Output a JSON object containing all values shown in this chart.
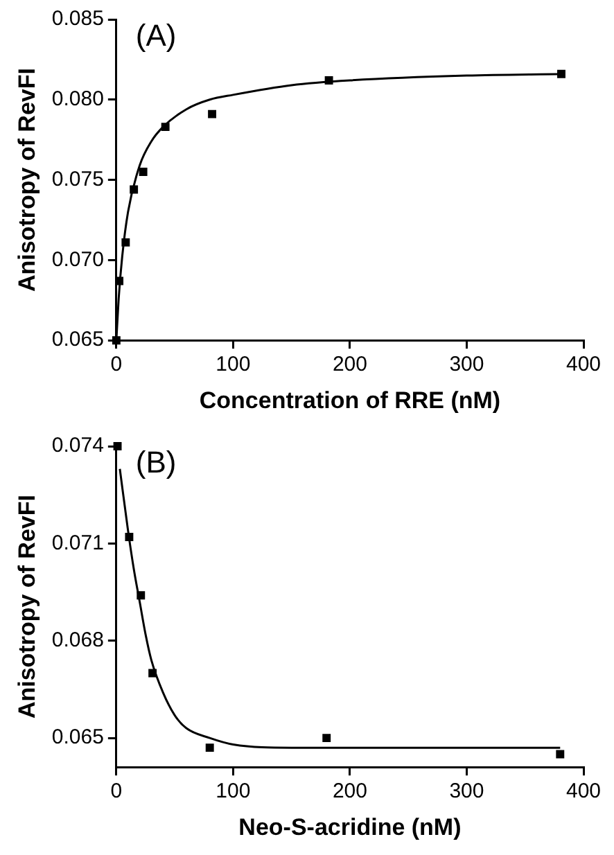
{
  "chart_data": [
    {
      "type": "scatter",
      "xlabel": "Concentration of RRE (nM)",
      "ylabel": "Anisotropy of RevFI",
      "annotations": [
        "(A)"
      ],
      "marker": "square",
      "grid": false,
      "legend": false,
      "xlim": [
        0,
        400
      ],
      "xticks": [
        0,
        100,
        200,
        300,
        400
      ],
      "ylim": [
        0.065,
        0.085
      ],
      "yticks": [
        {
          "value": 0.065,
          "label": "0.065"
        },
        {
          "value": 0.07,
          "label": "0.070"
        },
        {
          "value": 0.075,
          "label": "0.075"
        },
        {
          "value": 0.08,
          "label": "0.080"
        },
        {
          "value": 0.085,
          "label": "0.085"
        }
      ],
      "series": [
        {
          "color": "#000000",
          "x": [
            0,
            2.5,
            8,
            15,
            23,
            42,
            82,
            182,
            381
          ],
          "values": [
            0.065,
            0.0687,
            0.0711,
            0.0744,
            0.0755,
            0.0783,
            0.0791,
            0.0812,
            0.0816
          ]
        },
        {
          "type": "line",
          "color": "#000000",
          "marker": "none",
          "line_style": "solid",
          "x": [
            0,
            2,
            5,
            10,
            20,
            30,
            40,
            60,
            80,
            100,
            150,
            200,
            300,
            382
          ],
          "values": [
            0.065,
            0.0676,
            0.0702,
            0.073,
            0.0759,
            0.0774,
            0.0783,
            0.0794,
            0.08,
            0.0803,
            0.0809,
            0.0812,
            0.0815,
            0.0816
          ]
        }
      ]
    },
    {
      "type": "scatter",
      "xlabel": "Neo-S-acridine (nM)",
      "ylabel": "Anisotropy of RevFI",
      "annotations": [
        "(B)"
      ],
      "marker": "square",
      "grid": false,
      "legend": false,
      "xlim": [
        0,
        400
      ],
      "xticks": [
        0,
        100,
        200,
        300,
        400
      ],
      "ylim": [
        0.0641,
        0.074
      ],
      "yticks": [
        0.065,
        0.068,
        0.071,
        0.074
      ],
      "series": [
        {
          "color": "#000000",
          "x": [
            1,
            11,
            21,
            31,
            80,
            180,
            380
          ],
          "values": [
            0.074,
            0.0712,
            0.0694,
            0.067,
            0.0647,
            0.065,
            0.0645
          ]
        },
        {
          "type": "line",
          "color": "#000000",
          "marker": "none",
          "line_style": "solid",
          "x": [
            3,
            10,
            15,
            20,
            25,
            30,
            40,
            50,
            60,
            80,
            100,
            150,
            200,
            300,
            380
          ],
          "values": [
            0.0733,
            0.0714,
            0.0702,
            0.0692,
            0.0682,
            0.0674,
            0.0664,
            0.0657,
            0.0653,
            0.065,
            0.0648,
            0.0647,
            0.0647,
            0.0647,
            0.0647
          ]
        }
      ]
    }
  ]
}
